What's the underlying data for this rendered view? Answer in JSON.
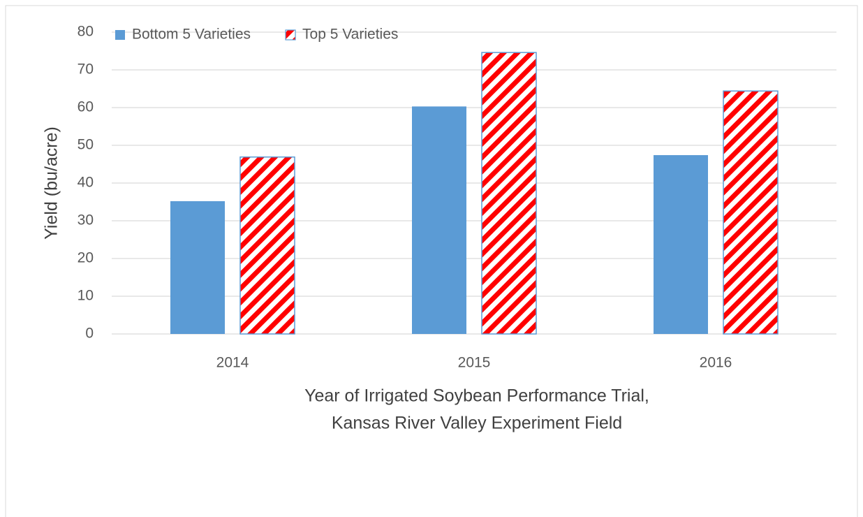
{
  "chart_data": {
    "type": "bar",
    "categories": [
      "2014",
      "2015",
      "2016"
    ],
    "series": [
      {
        "name": "Bottom 5 Varieties",
        "color": "#5b9bd5",
        "values": [
          35.2,
          60.3,
          47.4
        ]
      },
      {
        "name": "Top 5 Varieties",
        "color": "#ff0000",
        "edgecolor": "#5b9bd5",
        "pattern": "hatch",
        "values": [
          46.9,
          74.6,
          64.4
        ]
      }
    ],
    "y_label": "Yield (bu/acre)",
    "x_label": [
      "Year of Irrigated Soybean Performance Trial,",
      "Kansas River Valley Experiment Field"
    ],
    "ylim": [
      0,
      80
    ],
    "yticks": [
      0,
      10,
      20,
      30,
      40,
      50,
      60,
      70,
      80
    ],
    "grid": true,
    "legend": "top left"
  }
}
